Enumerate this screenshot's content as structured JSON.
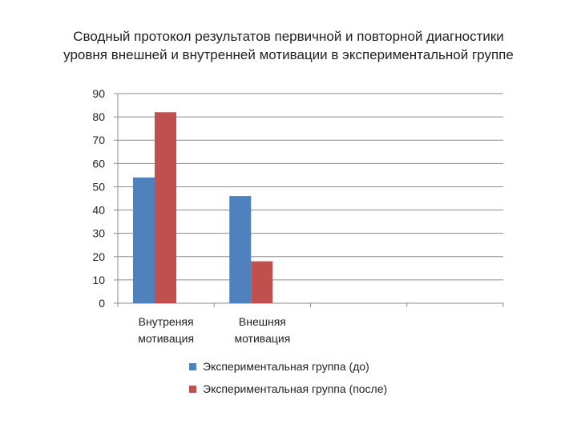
{
  "chart_data": {
    "type": "bar",
    "title_lines": [
      "Сводный протокол результатов первичной и повторной диагностики",
      "уровня внешней и внутренней мотивации в экспериментальной группе"
    ],
    "categories": [
      [
        "Внутреняя",
        "мотивация"
      ],
      [
        "Внешняя",
        "мотивация"
      ],
      [
        "",
        ""
      ],
      [
        "",
        ""
      ]
    ],
    "series": [
      {
        "name": "Экспериментальная группа (до)",
        "color": "#4f81bd",
        "values": [
          54,
          46,
          null,
          null
        ]
      },
      {
        "name": "Экспериментальная группа (после)",
        "color": "#c0504d",
        "values": [
          82,
          18,
          null,
          null
        ]
      }
    ],
    "ylim": [
      0,
      90
    ],
    "yticks": [
      "0",
      "10",
      "20",
      "30",
      "40",
      "50",
      "60",
      "70",
      "80",
      "90"
    ],
    "grid": true,
    "legend_position": "bottom"
  }
}
